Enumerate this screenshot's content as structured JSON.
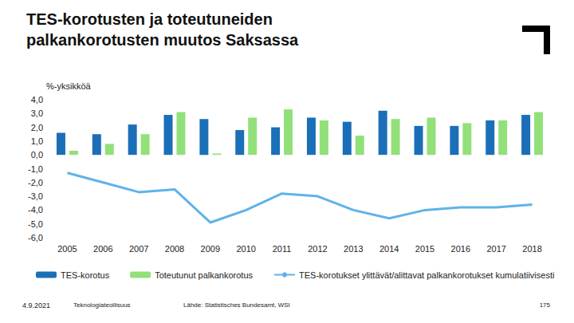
{
  "chart_data": {
    "type": "bar",
    "title": "TES-korotusten ja toteutuneiden palkankorotusten muutos Saksassa",
    "ylabel": "%-yksikköä",
    "categories": [
      "2005",
      "2006",
      "2007",
      "2008",
      "2009",
      "2010",
      "2011",
      "2012",
      "2013",
      "2014",
      "2015",
      "2016",
      "2017",
      "2018"
    ],
    "series": [
      {
        "name": "TES-korotus",
        "type": "bar",
        "color": "#1a6fb8",
        "values": [
          1.6,
          1.5,
          2.2,
          2.9,
          2.6,
          1.8,
          2.0,
          2.7,
          2.4,
          3.2,
          2.1,
          2.1,
          2.5,
          2.9
        ]
      },
      {
        "name": "Toteutunut palkankorotus",
        "type": "bar",
        "color": "#92e07a",
        "values": [
          0.3,
          0.8,
          1.5,
          3.1,
          0.1,
          2.7,
          3.3,
          2.5,
          1.4,
          2.6,
          2.7,
          2.3,
          2.5,
          3.1
        ]
      },
      {
        "name": "TES-korotukset ylittävät/alittavat palkankorotukset kumulatiivisesti",
        "type": "line",
        "color": "#5fb3e8",
        "values": [
          -1.3,
          -2.0,
          -2.7,
          -2.5,
          -4.9,
          -4.0,
          -2.8,
          -3.0,
          -4.0,
          -4.6,
          -4.0,
          -3.8,
          -3.8,
          -3.6
        ]
      }
    ],
    "ylim": [
      -6,
      4
    ],
    "yticks": [
      {
        "value": -6,
        "label": "-6,0"
      },
      {
        "value": -5,
        "label": "-5,0"
      },
      {
        "value": -4,
        "label": "-4,0"
      },
      {
        "value": -3,
        "label": "-3,0"
      },
      {
        "value": -2,
        "label": "-2,0"
      },
      {
        "value": -1,
        "label": "-1,0"
      },
      {
        "value": 0,
        "label": "0,0"
      },
      {
        "value": 1,
        "label": "1,0"
      },
      {
        "value": 2,
        "label": "2,0"
      },
      {
        "value": 3,
        "label": "3,0"
      },
      {
        "value": 4,
        "label": "4,0"
      }
    ],
    "grid": false,
    "legend": "bottom"
  },
  "footer": {
    "date": "4.9.2021",
    "organization": "Teknologiateollisuus",
    "source": "Lähde: Statistisches Bundesamt, WSI",
    "page": "175"
  }
}
